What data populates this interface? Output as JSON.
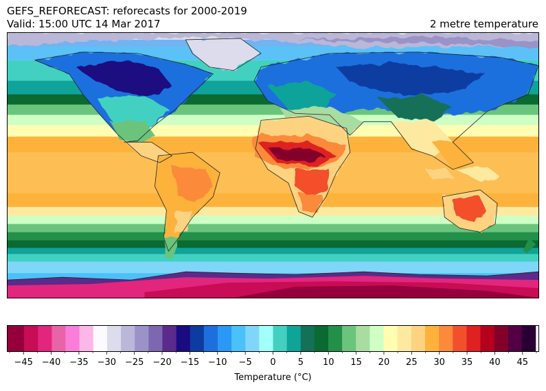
{
  "header": {
    "title_line1": "GEFS_REFORECAST: reforecasts for 2000-2019",
    "title_line2": "Valid: 15:00 UTC 14 Mar 2017",
    "variable": "2 metre temperature"
  },
  "map": {
    "projection": "equirectangular global",
    "colors": {
      "polar_pink": "#e2267e",
      "ice_purple": "#5b2a8a",
      "cold_blue": "#1f3fa0",
      "cyan": "#7fe3f5",
      "teal": "#41c9b6",
      "green_dark": "#0a6e3a",
      "green": "#5ab86b",
      "pale_green": "#c8f5b4",
      "yellow": "#fef6a6",
      "orange": "#fdb23b",
      "red": "#e32d20",
      "dark_red": "#7b0a2a",
      "land_outline": "#222222"
    }
  },
  "colorbar": {
    "label": "Temperature (°C)",
    "min": -48,
    "max": 48,
    "step": 2.5,
    "tick_values": [
      -45,
      -40,
      -35,
      -30,
      -25,
      -20,
      -15,
      -10,
      -5,
      0,
      5,
      10,
      15,
      20,
      25,
      30,
      35,
      40,
      45
    ],
    "tick_labels": [
      "−45",
      "−40",
      "−35",
      "−30",
      "−25",
      "−20",
      "−15",
      "−10",
      "−5",
      "0",
      "5",
      "10",
      "15",
      "20",
      "25",
      "30",
      "35",
      "40",
      "45"
    ],
    "bin_colors": [
      "#95003c",
      "#c80c55",
      "#e2267e",
      "#e864a8",
      "#fa7ed9",
      "#fdb6e8",
      "#fdfafd",
      "#dcdcec",
      "#bab7d8",
      "#9b93c7",
      "#7c68b0",
      "#5b2a8a",
      "#1a0b80",
      "#0d3ca0",
      "#1e6fdd",
      "#2b98f5",
      "#4bc1fa",
      "#7fd6f8",
      "#a3fffa",
      "#42d1c0",
      "#10a39a",
      "#137059",
      "#0a6a32",
      "#23904a",
      "#6ac47c",
      "#a9dca0",
      "#cfffc5",
      "#fffdb2",
      "#fdeaa0",
      "#fdd382",
      "#fdb23b",
      "#fc8a3a",
      "#f2502c",
      "#de2220",
      "#b5001e",
      "#83002a",
      "#530044",
      "#2a0034"
    ]
  }
}
